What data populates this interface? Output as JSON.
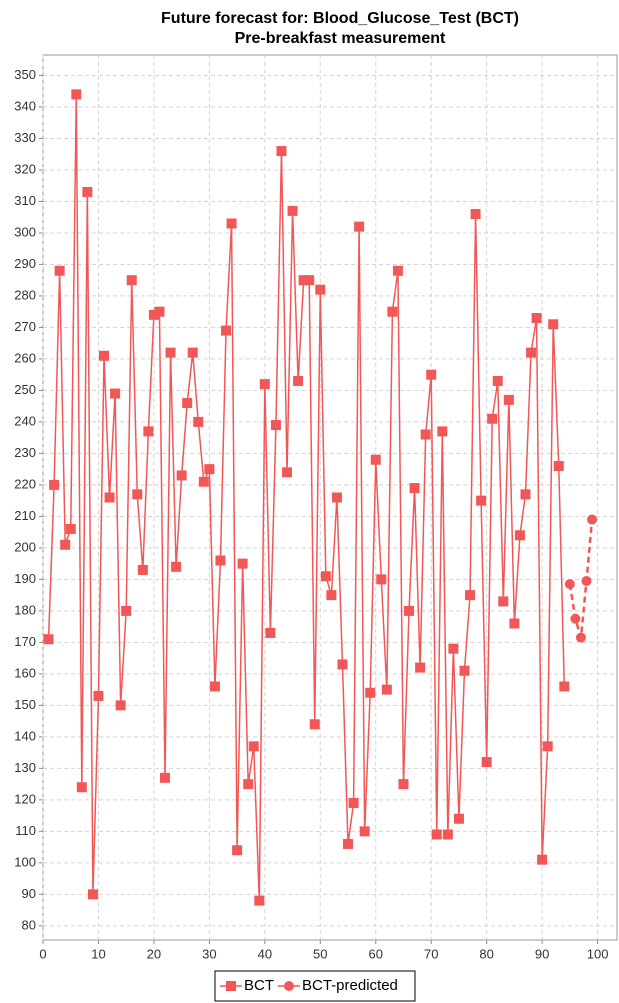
{
  "chart_data": {
    "type": "line",
    "title": "Future forecast for: Blood_Glucose_Test (BCT)",
    "subtitle": "Pre-breakfast measurement",
    "series": [
      {
        "name": "BCT",
        "color": "#f25757",
        "marker": "square",
        "dashed": false,
        "x": [
          1,
          2,
          3,
          4,
          5,
          6,
          7,
          8,
          9,
          10,
          11,
          12,
          13,
          14,
          15,
          16,
          17,
          18,
          19,
          20,
          21,
          22,
          23,
          24,
          25,
          26,
          27,
          28,
          29,
          30,
          31,
          32,
          33,
          34,
          35,
          36,
          37,
          38,
          39,
          40,
          41,
          42,
          43,
          44,
          45,
          46,
          47,
          48,
          49,
          50,
          51,
          52,
          53,
          54,
          55,
          56,
          57,
          58,
          59,
          60,
          61,
          62,
          63,
          64,
          65,
          66,
          67,
          68,
          69,
          70,
          71,
          72,
          73,
          74,
          75,
          76,
          77,
          78,
          79,
          80,
          81,
          82,
          83,
          84,
          85,
          86,
          87,
          88,
          89,
          90,
          91,
          92,
          93,
          94
        ],
        "values": [
          171,
          220,
          288,
          201,
          206,
          344,
          124,
          313,
          90,
          153,
          261,
          216,
          249,
          150,
          180,
          285,
          217,
          193,
          237,
          274,
          275,
          127,
          262,
          194,
          223,
          246,
          262,
          240,
          221,
          225,
          156,
          196,
          269,
          303,
          104,
          195,
          125,
          137,
          88,
          252,
          173,
          239,
          326,
          224,
          307,
          253,
          285,
          285,
          144,
          282,
          191,
          185,
          216,
          163,
          106,
          119,
          302,
          110,
          154,
          228,
          190,
          155,
          275,
          288,
          125,
          180,
          219,
          162,
          236,
          255,
          109,
          237,
          109,
          168,
          114,
          161,
          185,
          306,
          215,
          132,
          241,
          253,
          183,
          247,
          176,
          204,
          217,
          262,
          273,
          101,
          137,
          271,
          226,
          156
        ]
      },
      {
        "name": "BCT-predicted",
        "color": "#f25757",
        "marker": "circle",
        "dashed": true,
        "x": [
          95,
          96,
          97,
          98,
          99
        ],
        "values": [
          188.5,
          177.5,
          171.5,
          189.5,
          209
        ]
      }
    ],
    "xlim": [
      0,
      103.5
    ],
    "xticks": [
      0,
      10,
      20,
      30,
      40,
      50,
      60,
      70,
      80,
      90,
      100
    ],
    "ylim": [
      75.5,
      356.5
    ],
    "yticks": [
      80,
      90,
      100,
      110,
      120,
      130,
      140,
      150,
      160,
      170,
      180,
      190,
      200,
      210,
      220,
      230,
      240,
      250,
      260,
      270,
      280,
      290,
      300,
      310,
      320,
      330,
      340,
      350
    ],
    "grid": true,
    "legend": "bottom"
  }
}
